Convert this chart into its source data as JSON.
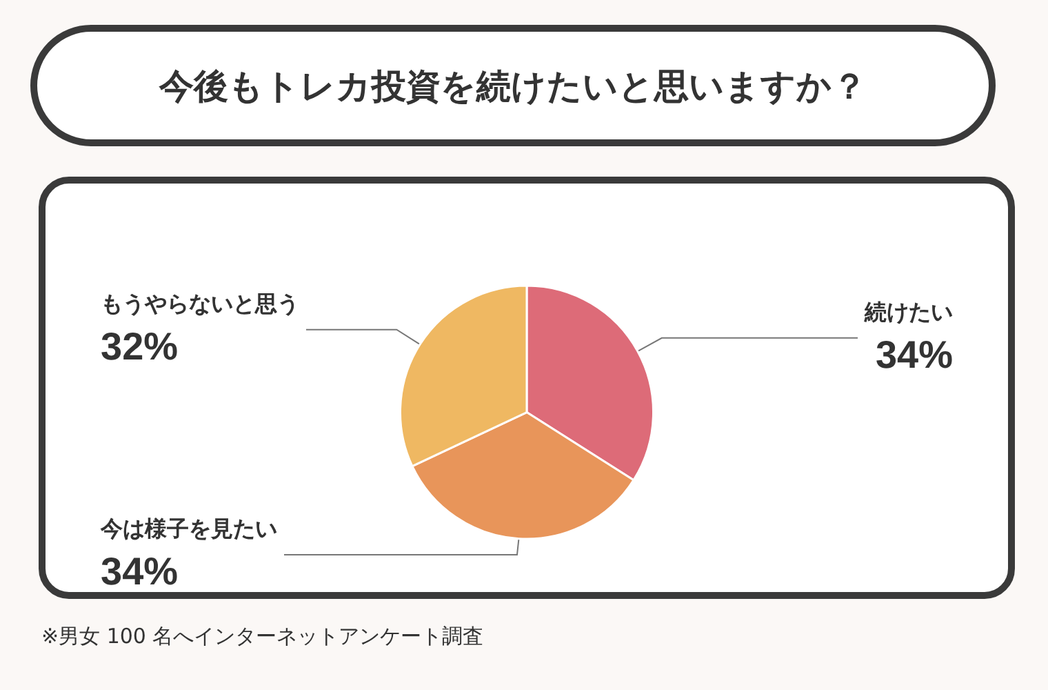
{
  "chart_data": {
    "type": "pie",
    "title": "今後もトレカ投資を続けたいと思いますか？",
    "categories": [
      "続けたい",
      "今は様子を見たい",
      "もうやらないと思う"
    ],
    "values": [
      34,
      34,
      32
    ],
    "value_labels": [
      "34%",
      "34%",
      "32%"
    ],
    "colors": [
      "#dd6b78",
      "#e8955a",
      "#efb862"
    ],
    "annotations": [
      "※男女 100 名へインターネットアンケート調査"
    ]
  }
}
